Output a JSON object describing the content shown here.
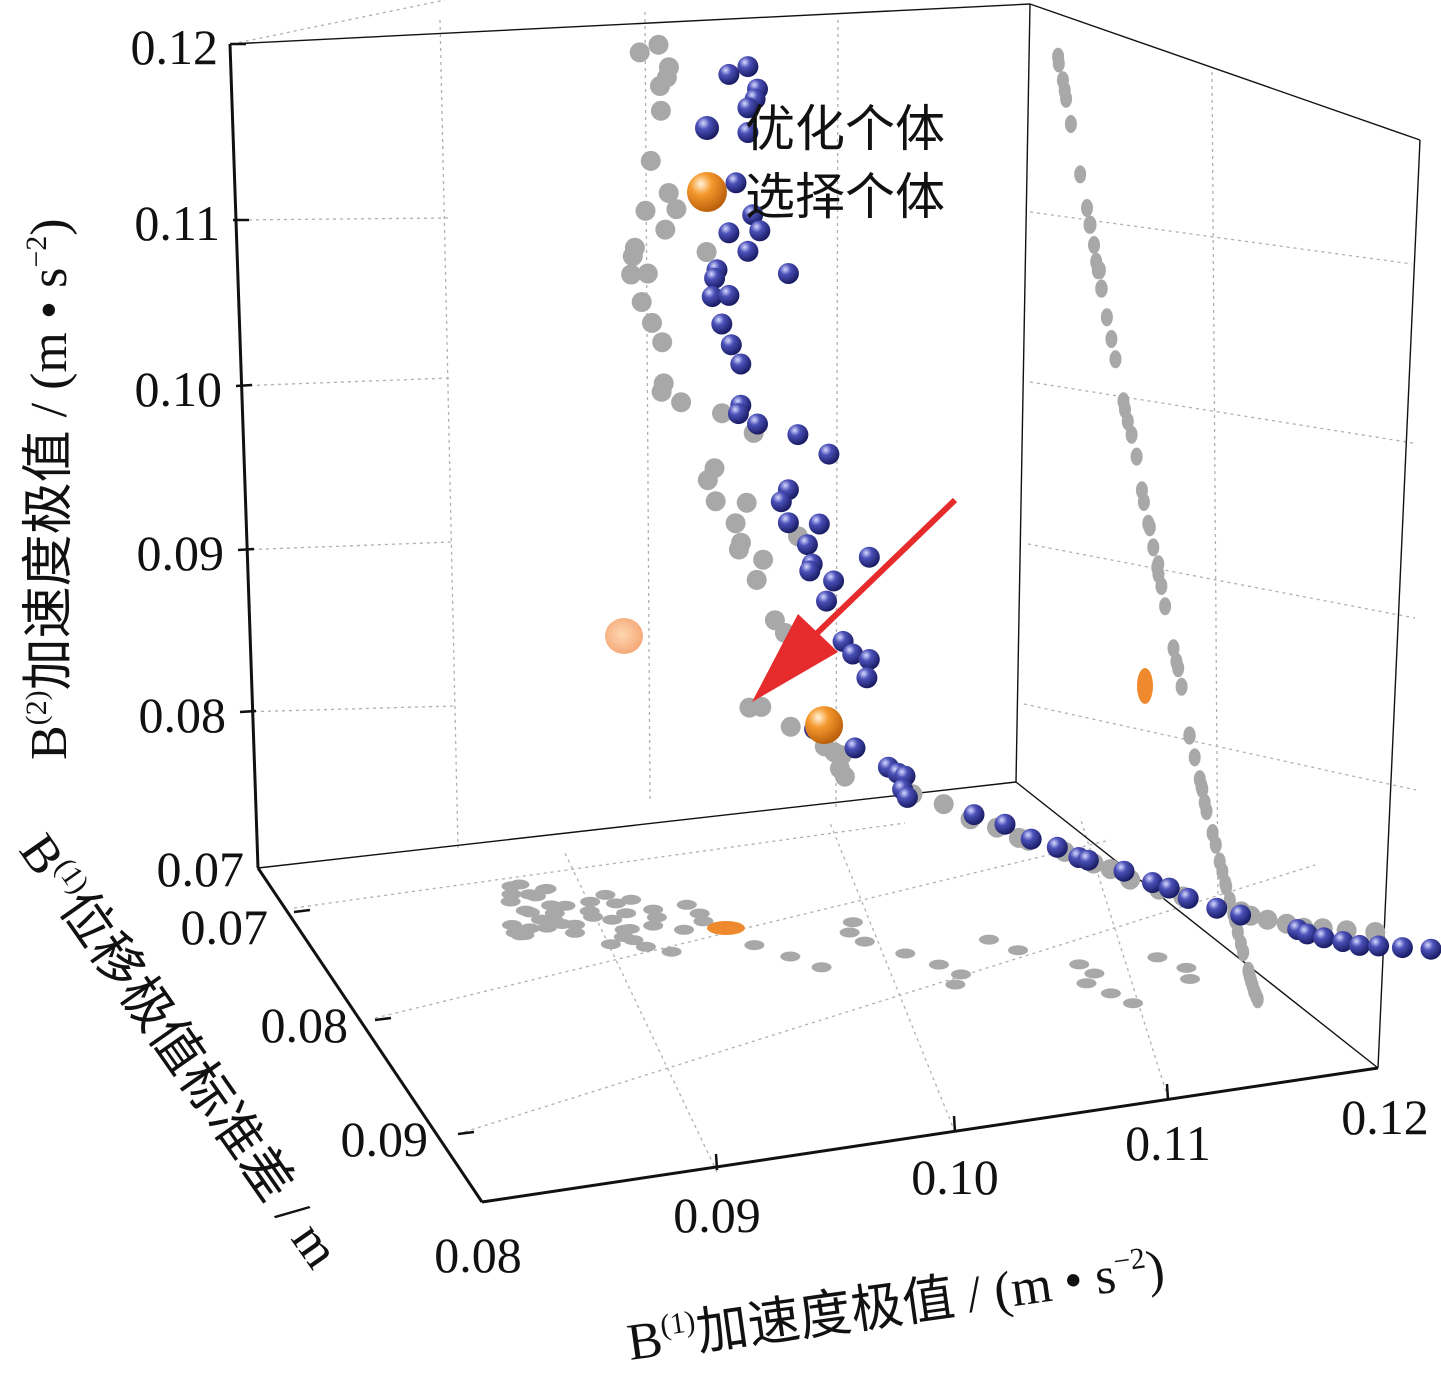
{
  "chart_data": {
    "type": "scatter",
    "zlabel": {
      "base": "B",
      "sup": "(2)",
      "text": "加速度极值 / (m • s",
      "sup2": "−2",
      "end": ")"
    },
    "xlabel": {
      "base": "B",
      "sup": "(1)",
      "text": "加速度极值 / (m • s",
      "sup2": "−2",
      "end": ")"
    },
    "ylabel": {
      "base": "B",
      "sup": "(1)",
      "text": "位移极值标准差 / m"
    },
    "z_ticks": [
      "0.07",
      "0.08",
      "0.09",
      "0.10",
      "0.11",
      "0.12"
    ],
    "x_ticks": [
      "0.08",
      "0.09",
      "0.10",
      "0.11",
      "0.12"
    ],
    "y_ticks": [
      "0.07",
      "0.08",
      "0.09"
    ],
    "xlim": [
      0.08,
      0.12
    ],
    "ylim": [
      0.07,
      0.095
    ],
    "zlim": [
      0.07,
      0.12
    ],
    "grid": true,
    "legend_position": "top-right",
    "series": [
      {
        "name": "优化个体",
        "color": "#2b2f8c",
        "points_xz": [
          [
            0.0905,
            0.1186
          ],
          [
            0.0913,
            0.119
          ],
          [
            0.0917,
            0.1176
          ],
          [
            0.0916,
            0.117
          ],
          [
            0.0913,
            0.1165
          ],
          [
            0.0913,
            0.115
          ],
          [
            0.0908,
            0.112
          ],
          [
            0.0915,
            0.11
          ],
          [
            0.0905,
            0.109
          ],
          [
            0.0918,
            0.109
          ],
          [
            0.0913,
            0.1078
          ],
          [
            0.093,
            0.1063
          ],
          [
            0.09,
            0.1068
          ],
          [
            0.0899,
            0.1063
          ],
          [
            0.0898,
            0.1052
          ],
          [
            0.0905,
            0.1052
          ],
          [
            0.0902,
            0.1035
          ],
          [
            0.0906,
            0.1022
          ],
          [
            0.091,
            0.101
          ],
          [
            0.091,
            0.0985
          ],
          [
            0.0909,
            0.098
          ],
          [
            0.0917,
            0.0973
          ],
          [
            0.0934,
            0.0965
          ],
          [
            0.0947,
            0.0952
          ],
          [
            0.093,
            0.0932
          ],
          [
            0.0927,
            0.0925
          ],
          [
            0.093,
            0.0912
          ],
          [
            0.0943,
            0.091
          ],
          [
            0.0938,
            0.0898
          ],
          [
            0.094,
            0.0886
          ],
          [
            0.0939,
            0.0882
          ],
          [
            0.0964,
            0.0888
          ],
          [
            0.0949,
            0.0875
          ],
          [
            0.0946,
            0.0863
          ],
          [
            0.0953,
            0.0838
          ],
          [
            0.0957,
            0.083
          ],
          [
            0.0964,
            0.0826
          ],
          [
            0.0963,
            0.0815
          ],
          [
            0.0941,
            0.0786
          ],
          [
            0.0946,
            0.0786
          ],
          [
            0.0958,
            0.0773
          ],
          [
            0.0972,
            0.076
          ],
          [
            0.0976,
            0.0756
          ],
          [
            0.0979,
            0.0754
          ],
          [
            0.0978,
            0.0746
          ],
          [
            0.098,
            0.0741
          ],
          [
            0.1008,
            0.0728
          ],
          [
            0.1021,
            0.0721
          ],
          [
            0.1032,
            0.0711
          ],
          [
            0.1043,
            0.0705
          ],
          [
            0.1052,
            0.0698
          ],
          [
            0.1056,
            0.0696
          ],
          [
            0.1071,
            0.0688
          ],
          [
            0.1083,
            0.068
          ],
          [
            0.109,
            0.0676
          ],
          [
            0.1098,
            0.0669
          ],
          [
            0.111,
            0.0662
          ],
          [
            0.112,
            0.0657
          ],
          [
            0.1144,
            0.0646
          ],
          [
            0.1148,
            0.0643
          ],
          [
            0.1155,
            0.064
          ],
          [
            0.1163,
            0.0637
          ],
          [
            0.117,
            0.0634
          ],
          [
            0.1178,
            0.0633
          ],
          [
            0.1188,
            0.0631
          ],
          [
            0.12,
            0.0629
          ]
        ]
      },
      {
        "name": "选择个体",
        "color": "#e8892a",
        "points_xz": [
          [
            0.0945,
            0.0788
          ]
        ]
      }
    ],
    "annotation": {
      "type": "arrow",
      "color": "#e52b2b"
    }
  }
}
